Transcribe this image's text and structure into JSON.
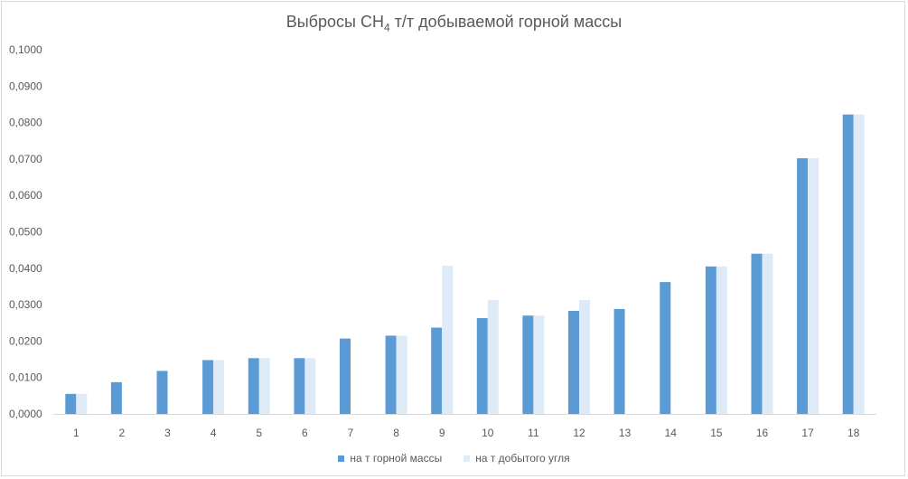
{
  "chart_data": {
    "type": "bar",
    "title_main": "Выбросы CH",
    "title_sub": "4",
    "title_rest": " т/т добываемой горной массы",
    "categories": [
      "1",
      "2",
      "3",
      "4",
      "5",
      "6",
      "7",
      "8",
      "9",
      "10",
      "11",
      "12",
      "13",
      "14",
      "15",
      "16",
      "17",
      "18"
    ],
    "series": [
      {
        "name": "на т горной массы",
        "color": "#5b9bd5",
        "values": [
          0.0055,
          0.0087,
          0.0118,
          0.0148,
          0.0153,
          0.0153,
          0.0207,
          0.0215,
          0.0237,
          0.0263,
          0.027,
          0.0283,
          0.0288,
          0.0362,
          0.0405,
          0.044,
          0.0702,
          0.0822
        ]
      },
      {
        "name": "на т добытого угля",
        "color": "#deebf7",
        "values": [
          0.0055,
          null,
          null,
          0.0148,
          0.0153,
          0.0153,
          null,
          0.0215,
          0.0407,
          0.0313,
          0.027,
          0.0313,
          null,
          null,
          0.0405,
          0.044,
          0.0702,
          0.0822
        ]
      }
    ],
    "yticks": [
      "0,0000",
      "0,0100",
      "0,0200",
      "0,0300",
      "0,0400",
      "0,0500",
      "0,0600",
      "0,0700",
      "0,0800",
      "0,0900",
      "0,1000"
    ],
    "ylim": [
      0,
      0.1
    ],
    "grid": false,
    "legend_position": "bottom"
  }
}
